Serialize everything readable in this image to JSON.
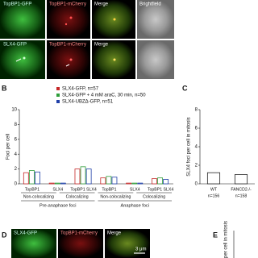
{
  "panel_labels": [
    "B",
    "C",
    "D",
    "E"
  ],
  "panel_a": {
    "row1": [
      "TopBP1-GFP",
      "TopBP1-mCherry",
      "Merge",
      "Brightfield"
    ],
    "row2": [
      "SLX4-GFP",
      "TopBP1-mCherry",
      "Merge"
    ]
  },
  "chart_data": [
    {
      "type": "bar",
      "ylabel": "Foci per cell",
      "categories": [
        "TopBP1",
        "SLX4",
        "TopBP1 SLX4",
        "TopBP1",
        "SLX4",
        "TopBP1 SLX4"
      ],
      "groups": [
        "Non-colocalizing",
        "Colocalizing",
        "Non-colocalizing",
        "Colocalizing"
      ],
      "phases": [
        "Pre-anaphase foci",
        "Anaphase foci"
      ],
      "series": [
        {
          "name": "SLX4-GFP, n=57",
          "color": "#c62828",
          "values": [
            1.5,
            0.1,
            2.0,
            0.8,
            0.1,
            0.7
          ]
        },
        {
          "name": "SLX4-GFP + 4 mM araC, 30 min, n=50",
          "color": "#2e9e3a",
          "values": [
            1.8,
            0.1,
            2.3,
            1.0,
            0.1,
            0.8
          ]
        },
        {
          "name": "SLX4-UBZΔ-GFP, n=51",
          "color": "#1f3fa8",
          "values": [
            1.6,
            0.1,
            2.0,
            0.9,
            0.1,
            0.6
          ]
        }
      ],
      "ylim": [
        0,
        10
      ],
      "yticks": [
        0,
        2,
        4,
        6,
        8,
        10
      ]
    },
    {
      "type": "bar",
      "ylabel": "SLX4 foci per cell in mitosis",
      "categories": [
        "WT",
        "FANCD2-/-"
      ],
      "annotations": [
        "n=156",
        "n=158"
      ],
      "values": [
        1.2,
        1.0
      ],
      "color": "#222222",
      "ylim": [
        0,
        8
      ],
      "yticks": [
        0,
        2,
        4,
        6,
        8
      ]
    }
  ],
  "panel_d": {
    "labels": [
      "SLX4-GFP",
      "TopBP1-mCherry",
      "Merge"
    ],
    "scale": "3 μm"
  },
  "panel_e": {
    "ylabel": "per cell in mitosis"
  }
}
